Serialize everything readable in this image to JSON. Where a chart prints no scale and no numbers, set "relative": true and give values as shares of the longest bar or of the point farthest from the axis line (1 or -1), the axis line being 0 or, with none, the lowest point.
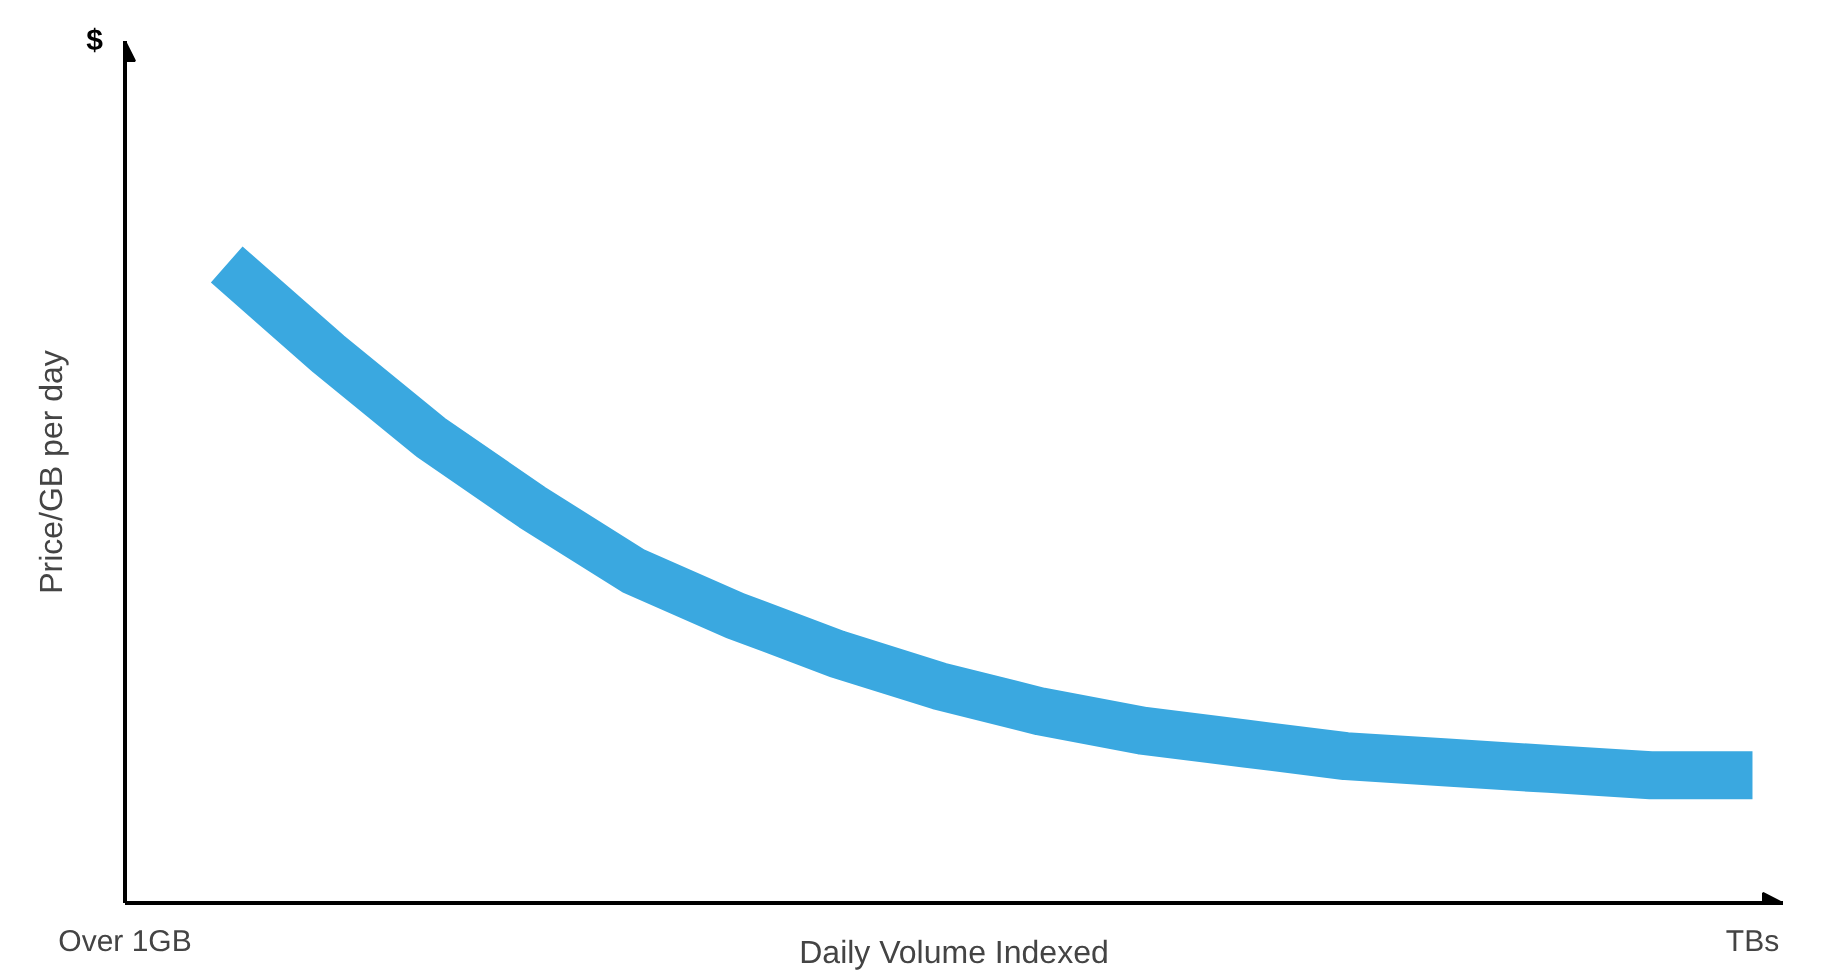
{
  "chart_data": {
    "type": "line",
    "relative": true,
    "xlabel": "Daily Volume Indexed",
    "ylabel": "Price/GB per day",
    "annotations": [
      "$"
    ],
    "categories": [
      "Over 1GB",
      null,
      null,
      null,
      null,
      null,
      null,
      null,
      null,
      null,
      null,
      null,
      null,
      null,
      null,
      null,
      "TBs"
    ],
    "values": [
      null,
      1,
      0.86,
      0.73,
      0.62,
      0.52,
      0.45,
      0.39,
      0.34,
      0.3,
      0.27,
      0.25,
      0.23,
      0.22,
      0.21,
      0.2,
      0.2
    ],
    "color": "#3aa8e0"
  }
}
